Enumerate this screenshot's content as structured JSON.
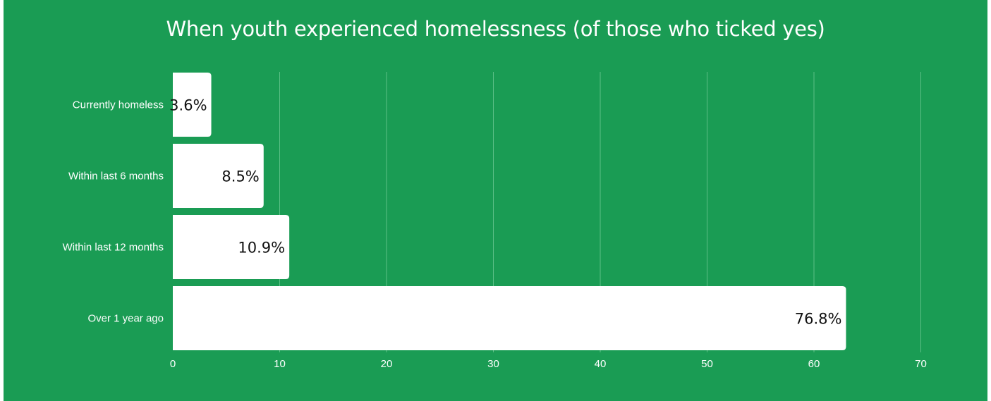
{
  "chart_data": {
    "type": "bar",
    "orientation": "horizontal",
    "title": "When youth experienced homelessness (of those who ticked yes)",
    "categories": [
      "Currently homeless",
      "Within last 6 months",
      "Within last 12 months",
      "Over 1 year ago"
    ],
    "values": [
      3.6,
      8.5,
      10.9,
      76.8
    ],
    "data_labels": [
      "3.6%",
      "8.5%",
      "10.9%",
      "76.8%"
    ],
    "xlim": [
      0,
      70
    ],
    "x_ticks": [
      "0",
      "10",
      "20",
      "30",
      "40",
      "50",
      "60",
      "70"
    ],
    "grid": true,
    "xlabel": "",
    "ylabel": ""
  },
  "colors": {
    "background": "#1a9c54",
    "bar": "#ffffff",
    "text": "#ffffff",
    "data_label": "#111111",
    "gridline": "#5cbf86"
  }
}
